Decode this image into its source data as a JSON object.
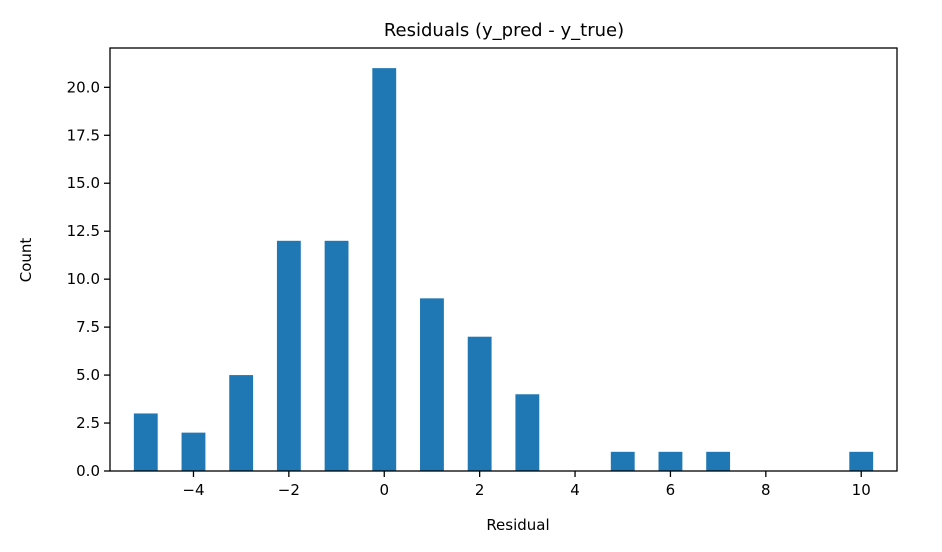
{
  "chart_data": {
    "type": "bar",
    "title": "Residuals (y_pred - y_true)",
    "xlabel": "Residual",
    "ylabel": "Count",
    "xlim": [
      -5.75,
      10.75
    ],
    "ylim": [
      0,
      22.05
    ],
    "grid": false,
    "bar_color": "#1f77b4",
    "bar_width": 0.5,
    "bars": [
      {
        "x": -5,
        "value": 3
      },
      {
        "x": -4,
        "value": 2
      },
      {
        "x": -3,
        "value": 5
      },
      {
        "x": -2,
        "value": 12
      },
      {
        "x": -1,
        "value": 12
      },
      {
        "x": 0,
        "value": 21
      },
      {
        "x": 1,
        "value": 9
      },
      {
        "x": 2,
        "value": 7
      },
      {
        "x": 3,
        "value": 4
      },
      {
        "x": 4,
        "value": 0
      },
      {
        "x": 5,
        "value": 1
      },
      {
        "x": 6,
        "value": 1
      },
      {
        "x": 7,
        "value": 1
      },
      {
        "x": 8,
        "value": 0
      },
      {
        "x": 9,
        "value": 0
      },
      {
        "x": 10,
        "value": 1
      }
    ],
    "x_ticks": [
      {
        "value": -4,
        "label": "−4"
      },
      {
        "value": -2,
        "label": "−2"
      },
      {
        "value": 0,
        "label": "0"
      },
      {
        "value": 2,
        "label": "2"
      },
      {
        "value": 4,
        "label": "4"
      },
      {
        "value": 6,
        "label": "6"
      },
      {
        "value": 8,
        "label": "8"
      },
      {
        "value": 10,
        "label": "10"
      }
    ],
    "y_ticks": [
      {
        "value": 0,
        "label": "0.0"
      },
      {
        "value": 2.5,
        "label": "2.5"
      },
      {
        "value": 5,
        "label": "5.0"
      },
      {
        "value": 7.5,
        "label": "7.5"
      },
      {
        "value": 10,
        "label": "10.0"
      },
      {
        "value": 12.5,
        "label": "12.5"
      },
      {
        "value": 15,
        "label": "15.0"
      },
      {
        "value": 17.5,
        "label": "17.5"
      },
      {
        "value": 20,
        "label": "20.0"
      }
    ]
  }
}
